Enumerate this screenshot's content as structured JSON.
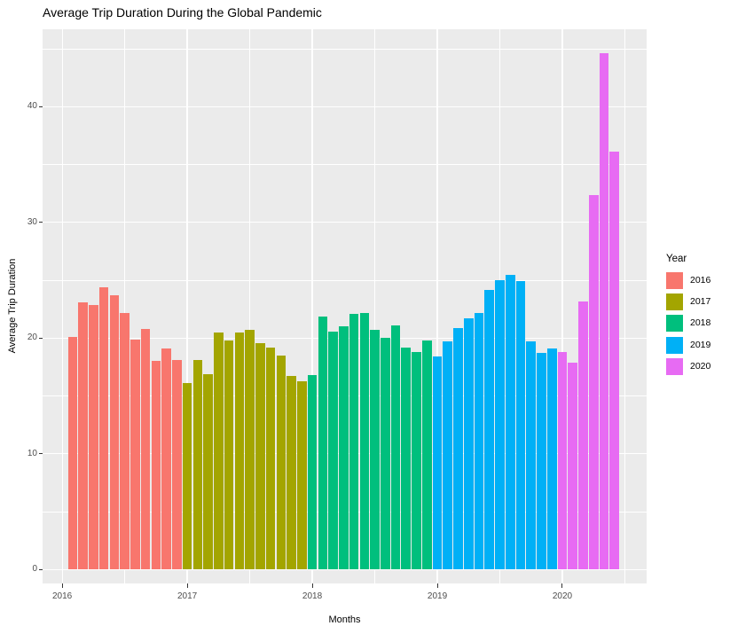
{
  "chart_data": {
    "type": "bar",
    "title": "Average Trip Duration During the Global Pandemic",
    "xlabel": "Months",
    "ylabel": "Average Trip Duration",
    "legend_title": "Year",
    "legend_position": "right",
    "grid": true,
    "panel_background": "#EBEBEB",
    "grid_color": "#FFFFFF",
    "tick_text_color": "#4D4D4D",
    "xlim": [
      2015.843,
      2020.674
    ],
    "ylim": [
      -1.2,
      46.7
    ],
    "yticks": [
      0,
      10,
      20,
      30,
      40
    ],
    "yticks_minor": [
      5,
      15,
      25,
      35,
      45
    ],
    "xticks": [
      2016,
      2017,
      2018,
      2019,
      2020
    ],
    "xticks_minor": [
      2016.5,
      2017.5,
      2018.5,
      2019.5,
      2020.5
    ],
    "x_unit": "decimal_year_monthly_bars",
    "series": [
      {
        "name": "2016",
        "color": "#F8766D",
        "start_month": "2016-02",
        "values": [
          20.1,
          23.1,
          22.9,
          24.4,
          23.7,
          22.2,
          19.9,
          20.8,
          18.0,
          19.1,
          18.1
        ]
      },
      {
        "name": "2017",
        "color": "#A3A500",
        "start_month": "2017-01",
        "values": [
          16.1,
          18.1,
          16.9,
          20.5,
          19.8,
          20.5,
          20.7,
          19.6,
          19.2,
          18.5,
          16.7,
          16.3
        ]
      },
      {
        "name": "2018",
        "color": "#00BF7D",
        "start_month": "2018-01",
        "values": [
          16.8,
          21.9,
          20.6,
          21.0,
          22.1,
          22.2,
          20.7,
          20.0,
          21.1,
          19.2,
          18.8,
          19.8
        ]
      },
      {
        "name": "2019",
        "color": "#00B0F6",
        "start_month": "2019-01",
        "values": [
          18.4,
          19.7,
          20.9,
          21.7,
          22.2,
          24.2,
          25.0,
          25.5,
          24.9,
          19.7,
          18.7,
          19.1
        ]
      },
      {
        "name": "2020",
        "color": "#E76BF3",
        "start_month": "2020-01",
        "values": [
          18.8,
          17.9,
          23.2,
          32.4,
          44.6,
          36.1
        ]
      }
    ]
  }
}
